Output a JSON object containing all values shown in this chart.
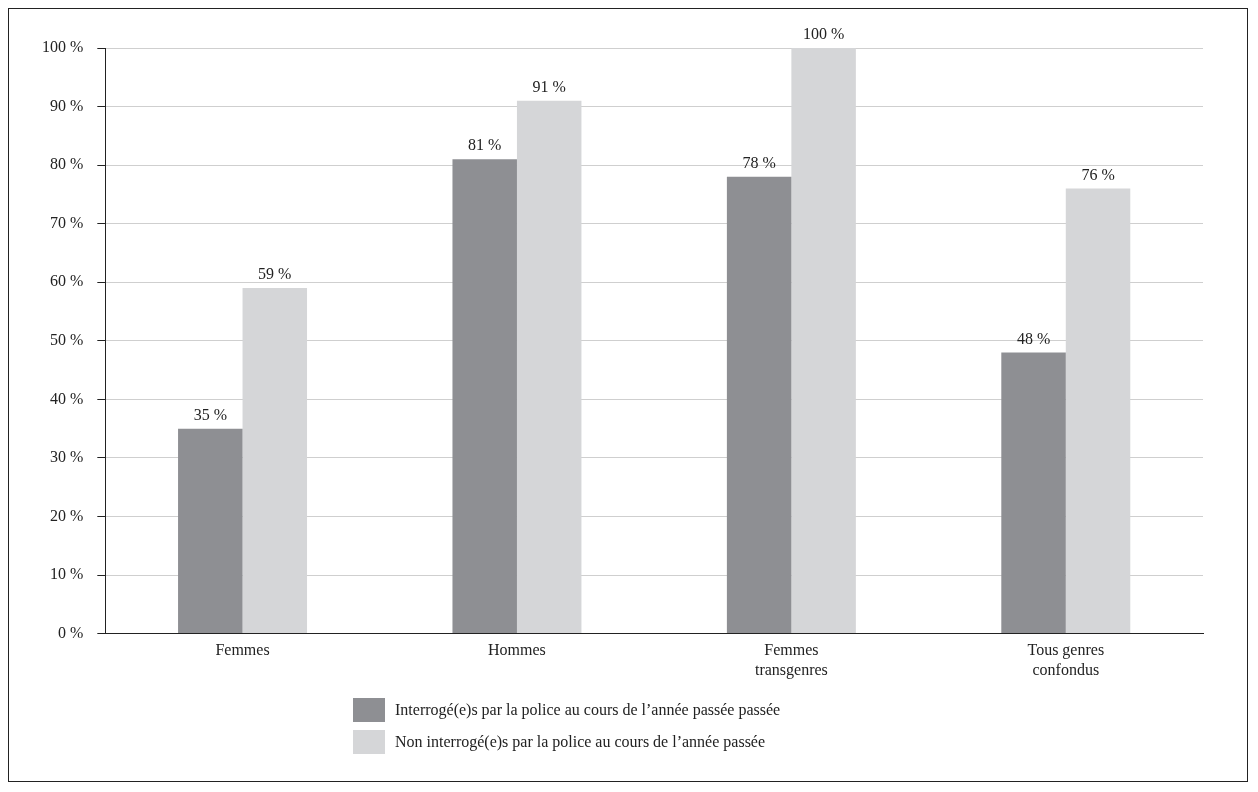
{
  "chart_data": {
    "type": "bar",
    "categories": [
      "Femmes",
      "Hommes",
      "Femmes transgenres",
      "Tous genres confondus"
    ],
    "series": [
      {
        "name": "Interrogé(e)s par la police au cours de l’année passée passée",
        "color": "#8e8f93",
        "values": [
          35,
          81,
          78,
          48
        ],
        "value_labels": [
          "35 %",
          "81 %",
          "78 %",
          "48 %"
        ]
      },
      {
        "name": "Non interrogé(e)s par la police au cours de l’année passée",
        "color": "#d5d6d8",
        "values": [
          59,
          91,
          100,
          76
        ],
        "value_labels": [
          "59 %",
          "91 %",
          "100 %",
          "76 %"
        ]
      }
    ],
    "ylim": [
      0,
      100
    ],
    "yticks": [
      {
        "value": 0,
        "label": "0 %"
      },
      {
        "value": 10,
        "label": "10 %"
      },
      {
        "value": 20,
        "label": "20 %"
      },
      {
        "value": 30,
        "label": "30 %"
      },
      {
        "value": 40,
        "label": "40 %"
      },
      {
        "value": 50,
        "label": "50 %"
      },
      {
        "value": 60,
        "label": "60 %"
      },
      {
        "value": 70,
        "label": "70 %"
      },
      {
        "value": 80,
        "label": "80 %"
      },
      {
        "value": 90,
        "label": "90 %"
      },
      {
        "value": 100,
        "label": "100 %"
      }
    ],
    "grid": "y",
    "legend": "bottom"
  }
}
